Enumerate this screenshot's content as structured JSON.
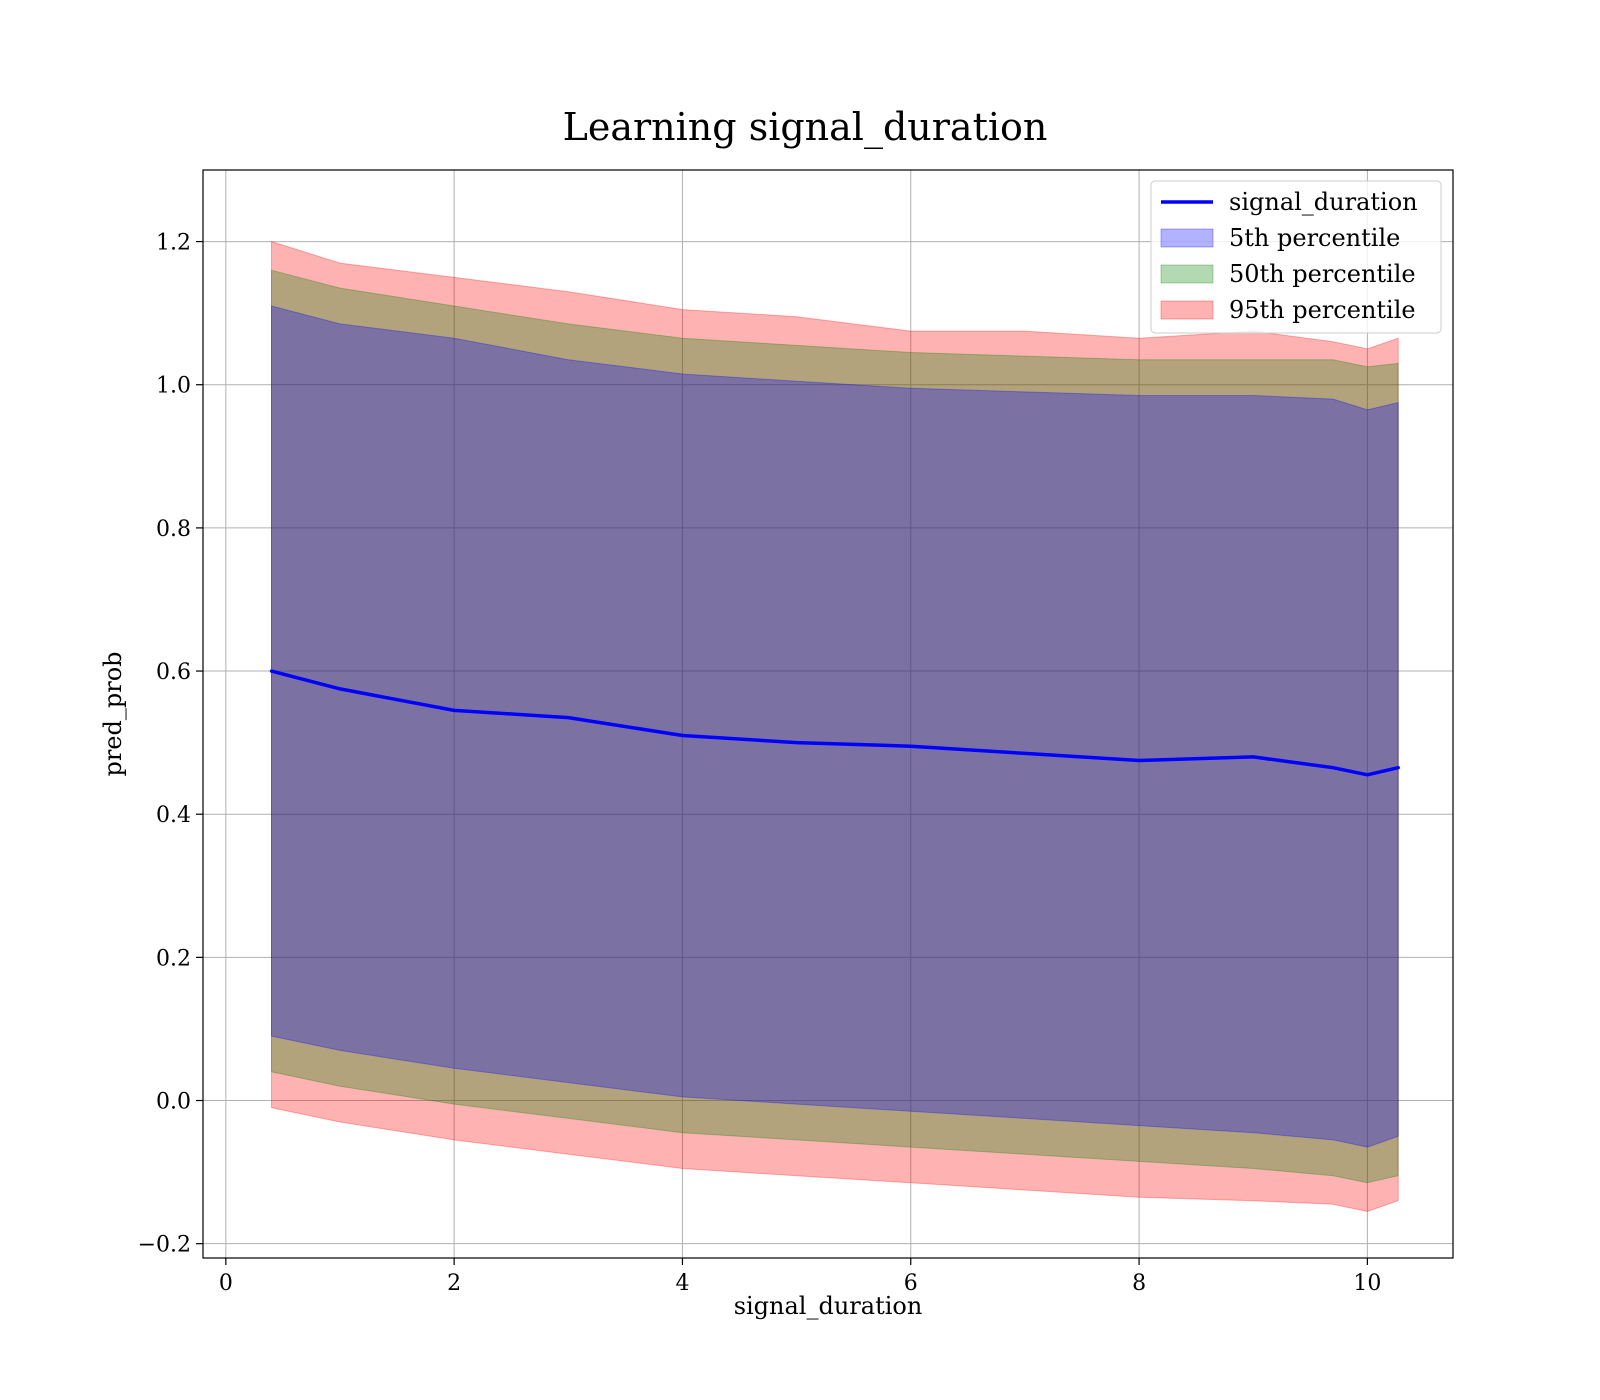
{
  "chart_data": {
    "type": "area",
    "title": "Learning signal_duration",
    "xlabel": "signal_duration",
    "ylabel": "pred_prob",
    "xlim": [
      -0.2,
      10.75
    ],
    "ylim": [
      -0.22,
      1.3
    ],
    "grid": true,
    "legend_position": "top-right",
    "x_ticks": [
      0,
      2,
      4,
      6,
      8,
      10
    ],
    "x_tick_labels": [
      "0",
      "2",
      "4",
      "6",
      "8",
      "10"
    ],
    "y_ticks": [
      -0.2,
      0.0,
      0.2,
      0.4,
      0.6,
      0.8,
      1.0,
      1.2
    ],
    "y_tick_labels": [
      "−0.2",
      "0.0",
      "0.2",
      "0.4",
      "0.6",
      "0.8",
      "1.0",
      "1.2"
    ],
    "x": [
      0.4,
      1.0,
      2.0,
      3.0,
      4.0,
      5.0,
      6.0,
      7.0,
      8.0,
      9.0,
      9.7,
      10.0,
      10.27
    ],
    "series": [
      {
        "name": "signal_duration",
        "kind": "line",
        "color": "#0000ff",
        "values": [
          0.6,
          0.575,
          0.545,
          0.535,
          0.51,
          0.5,
          0.495,
          0.485,
          0.475,
          0.48,
          0.465,
          0.455,
          0.465
        ]
      },
      {
        "name": "5th percentile",
        "kind": "band",
        "color": "#0000ff",
        "opacity": 0.3,
        "upper": [
          1.11,
          1.085,
          1.065,
          1.035,
          1.015,
          1.005,
          0.995,
          0.99,
          0.985,
          0.985,
          0.98,
          0.965,
          0.975
        ],
        "lower": [
          0.09,
          0.07,
          0.045,
          0.025,
          0.005,
          -0.005,
          -0.015,
          -0.025,
          -0.035,
          -0.045,
          -0.055,
          -0.065,
          -0.05
        ]
      },
      {
        "name": "50th percentile",
        "kind": "band",
        "color": "#008000",
        "opacity": 0.3,
        "upper": [
          1.16,
          1.135,
          1.11,
          1.085,
          1.065,
          1.055,
          1.045,
          1.04,
          1.035,
          1.035,
          1.035,
          1.025,
          1.03
        ],
        "lower": [
          0.04,
          0.02,
          -0.005,
          -0.025,
          -0.045,
          -0.055,
          -0.065,
          -0.075,
          -0.085,
          -0.095,
          -0.105,
          -0.115,
          -0.105
        ]
      },
      {
        "name": "95th percentile",
        "kind": "band",
        "color": "#ff0000",
        "opacity": 0.3,
        "upper": [
          1.2,
          1.17,
          1.15,
          1.13,
          1.105,
          1.095,
          1.075,
          1.075,
          1.065,
          1.075,
          1.06,
          1.05,
          1.065
        ],
        "lower": [
          -0.01,
          -0.03,
          -0.055,
          -0.075,
          -0.095,
          -0.105,
          -0.115,
          -0.125,
          -0.135,
          -0.14,
          -0.145,
          -0.155,
          -0.14
        ]
      }
    ],
    "legend": [
      {
        "label": "signal_duration",
        "kind": "line",
        "color": "#0000ff"
      },
      {
        "label": "5th percentile",
        "kind": "band",
        "color": "#0000ff"
      },
      {
        "label": "50th percentile",
        "kind": "band",
        "color": "#008000"
      },
      {
        "label": "95th percentile",
        "kind": "band",
        "color": "#ff0000"
      }
    ]
  }
}
